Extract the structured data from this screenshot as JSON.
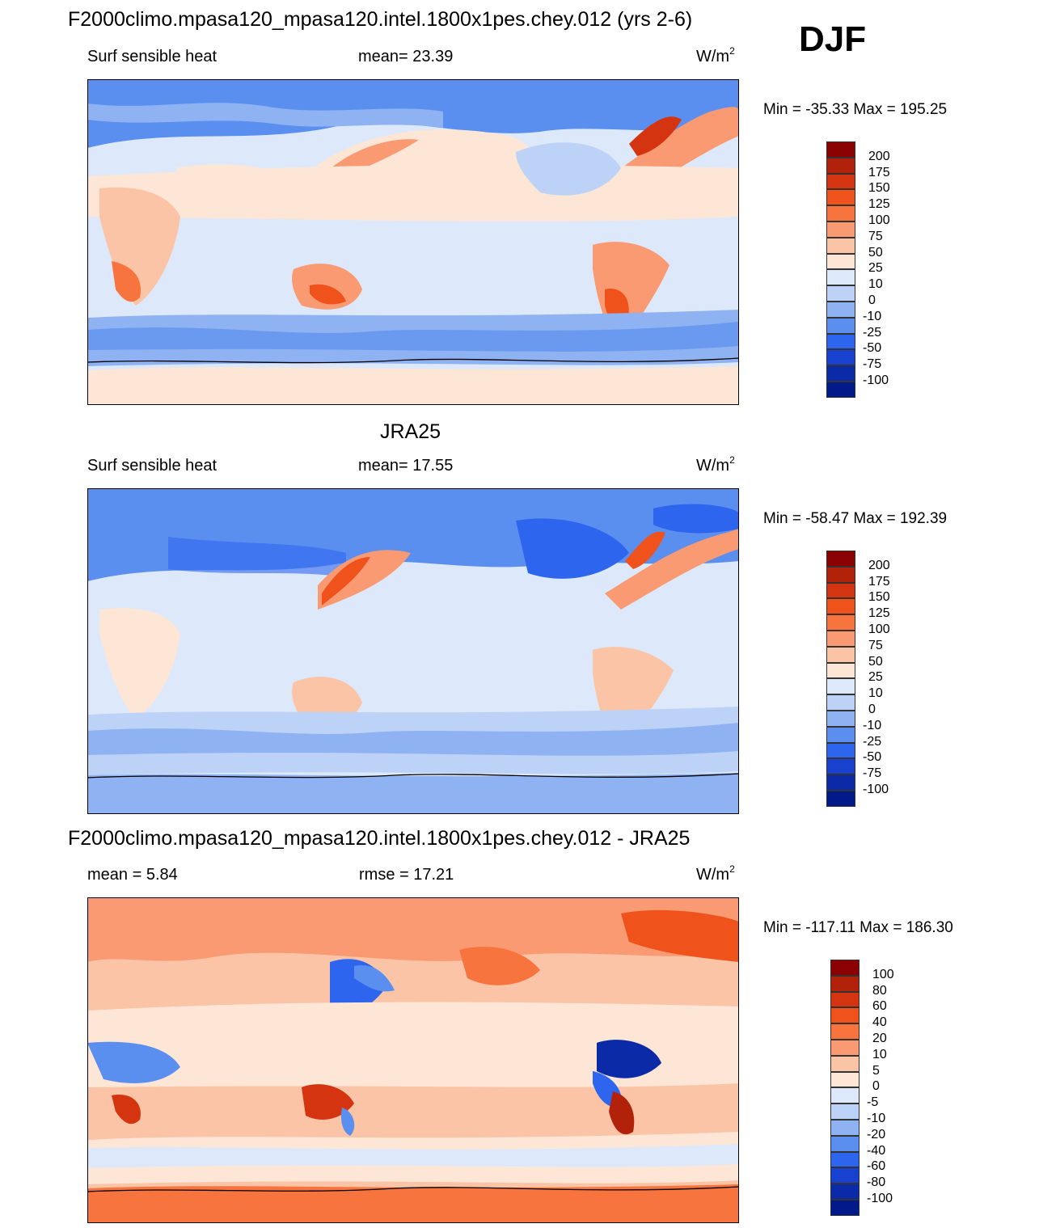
{
  "season": "DJF",
  "panels": [
    {
      "title": "F2000climo.mpasa120_mpasa120.intel.1800x1pes.chey.012 (yrs 2-6)",
      "left_label": "Surf sensible heat",
      "center_label": "mean=  23.39",
      "units_base": "W/m",
      "units_exp": "2",
      "minmax": "Min = -35.33 Max = 195.25",
      "colorbar": {
        "levels": [
          "200",
          "175",
          "150",
          "125",
          "100",
          "75",
          "50",
          "25",
          "10",
          "0",
          "-10",
          "-25",
          "-50",
          "-75",
          "-100"
        ],
        "colors": [
          "#8b0000",
          "#b2220a",
          "#d43510",
          "#f0521c",
          "#f7743f",
          "#f99a72",
          "#fbc4a6",
          "#fde6d6",
          "#dde9fa",
          "#bdd2f7",
          "#8fb2f2",
          "#5a8ff0",
          "#2e65ee",
          "#1941cf",
          "#0a2aa8",
          "#001a8a"
        ]
      }
    },
    {
      "title": "JRA25",
      "left_label": "Surf sensible heat",
      "center_label": "mean=  17.55",
      "units_base": "W/m",
      "units_exp": "2",
      "minmax": "Min = -58.47 Max = 192.39",
      "colorbar": {
        "levels": [
          "200",
          "175",
          "150",
          "125",
          "100",
          "75",
          "50",
          "25",
          "10",
          "0",
          "-10",
          "-25",
          "-50",
          "-75",
          "-100"
        ],
        "colors": [
          "#8b0000",
          "#b2220a",
          "#d43510",
          "#f0521c",
          "#f7743f",
          "#f99a72",
          "#fbc4a6",
          "#fde6d6",
          "#dde9fa",
          "#bdd2f7",
          "#8fb2f2",
          "#5a8ff0",
          "#2e65ee",
          "#1941cf",
          "#0a2aa8",
          "#001a8a"
        ]
      }
    },
    {
      "title": "F2000climo.mpasa120_mpasa120.intel.1800x1pes.chey.012 - JRA25",
      "left_label": "mean =   5.84",
      "center_label": "rmse =  17.21",
      "units_base": "W/m",
      "units_exp": "2",
      "minmax": "Min = -117.11 Max = 186.30",
      "colorbar": {
        "levels": [
          "100",
          "80",
          "60",
          "40",
          "20",
          "10",
          "5",
          "0",
          "-5",
          "-10",
          "-20",
          "-40",
          "-60",
          "-80",
          "-100"
        ],
        "colors": [
          "#8b0000",
          "#b2220a",
          "#d43510",
          "#f0521c",
          "#f7743f",
          "#f99a72",
          "#fbc4a6",
          "#fde6d6",
          "#dde9fa",
          "#bdd2f7",
          "#8fb2f2",
          "#5a8ff0",
          "#2e65ee",
          "#1941cf",
          "#0a2aa8",
          "#001a8a"
        ]
      }
    }
  ],
  "chart_data": {
    "type": "heatmap",
    "title": "DJF",
    "maps": [
      {
        "title": "F2000climo.mpasa120_mpasa120.intel.1800x1pes.chey.012 (yrs 2-6)",
        "variable": "Surf sensible heat",
        "units": "W/m2",
        "mean": 23.39,
        "min": -35.33,
        "max": 195.25
      },
      {
        "title": "JRA25",
        "variable": "Surf sensible heat",
        "units": "W/m2",
        "mean": 17.55,
        "min": -58.47,
        "max": 192.39
      },
      {
        "title": "F2000climo.mpasa120_mpasa120.intel.1800x1pes.chey.012 - JRA25",
        "units": "W/m2",
        "mean": 5.84,
        "rmse": 17.21,
        "min": -117.11,
        "max": 186.3
      }
    ]
  }
}
